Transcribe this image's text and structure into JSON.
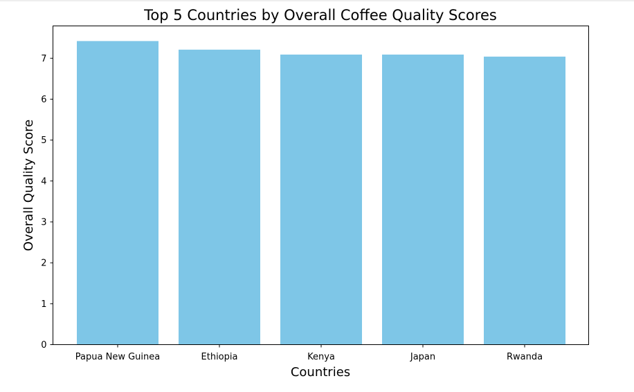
{
  "chart_data": {
    "type": "bar",
    "title": "Top 5 Countries by Overall Coffee Quality Scores",
    "xlabel": "Countries",
    "ylabel": "Overall Quality Score",
    "categories": [
      "Papua New Guinea",
      "Ethiopia",
      "Kenya",
      "Japan",
      "Rwanda"
    ],
    "values": [
      7.42,
      7.21,
      7.09,
      7.09,
      7.04
    ],
    "ylim": [
      0,
      7.79
    ],
    "yticks": [
      0,
      1,
      2,
      3,
      4,
      5,
      6,
      7
    ],
    "bar_color": "#7ec6e7",
    "grid": false,
    "legend": "none"
  }
}
